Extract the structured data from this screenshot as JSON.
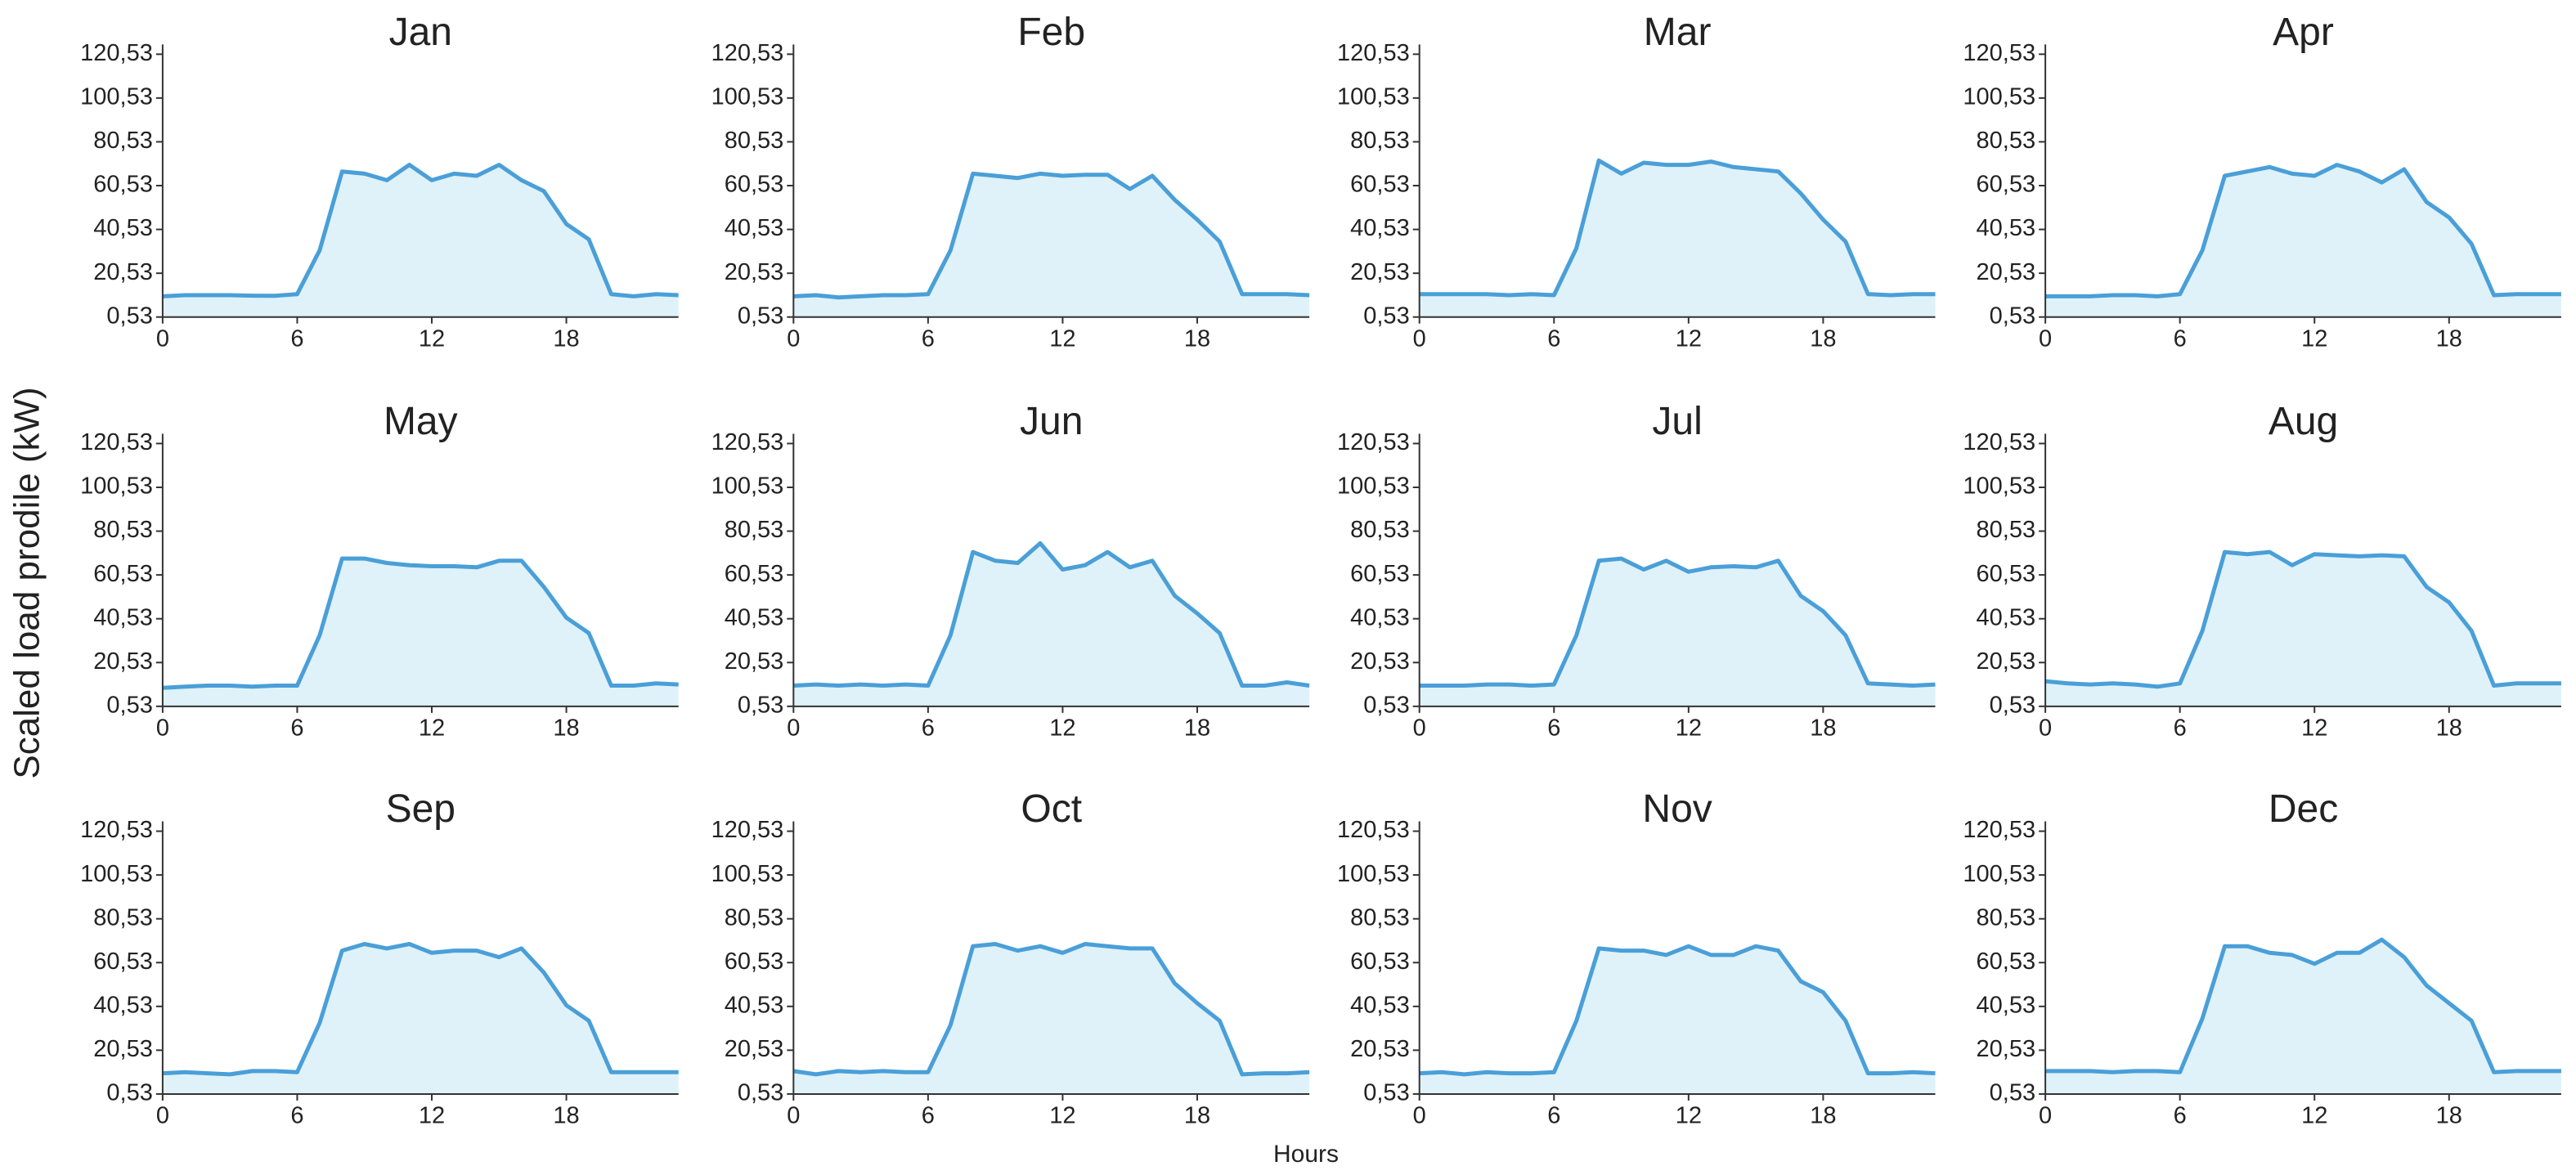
{
  "chart_data": {
    "type": "area",
    "ylabel": "Scaled load prodile (kW)",
    "xlabel": "Hours",
    "x": [
      0,
      1,
      2,
      3,
      4,
      5,
      6,
      7,
      8,
      9,
      10,
      11,
      12,
      13,
      14,
      15,
      16,
      17,
      18,
      19,
      20,
      21,
      22,
      23
    ],
    "xlim": [
      0,
      23
    ],
    "xticks": [
      0,
      6,
      12,
      18
    ],
    "ylim": [
      0.53,
      125
    ],
    "yticks": [
      {
        "value": 0.53,
        "label": "0,53"
      },
      {
        "value": 20.53,
        "label": "20,53"
      },
      {
        "value": 40.53,
        "label": "40,53"
      },
      {
        "value": 60.53,
        "label": "60,53"
      },
      {
        "value": 80.53,
        "label": "80,53"
      },
      {
        "value": 100.53,
        "label": "100,53"
      },
      {
        "value": 120.53,
        "label": "120,53"
      }
    ],
    "color": "#4a9fd8",
    "fill": "#dff2f9",
    "series": [
      {
        "name": "Jan",
        "values": [
          10,
          10.5,
          10.5,
          10.5,
          10.3,
          10.2,
          11,
          31,
          67,
          66,
          63,
          70,
          63,
          66,
          65,
          70,
          63,
          58,
          43,
          36,
          11,
          10,
          11,
          10.5
        ]
      },
      {
        "name": "Feb",
        "values": [
          10,
          10.5,
          9.5,
          10,
          10.5,
          10.5,
          11,
          31,
          66,
          65,
          64,
          66,
          65,
          65.5,
          65.5,
          59,
          65,
          54,
          45,
          35,
          11,
          11,
          11,
          10.5
        ]
      },
      {
        "name": "Mar",
        "values": [
          11,
          11,
          11,
          11,
          10.5,
          11,
          10.5,
          32,
          72,
          66,
          71,
          70,
          70,
          71.5,
          69,
          68,
          67,
          57,
          45,
          35,
          11,
          10.5,
          11,
          11
        ]
      },
      {
        "name": "Apr",
        "values": [
          10,
          10,
          10,
          10.5,
          10.5,
          10,
          11,
          31,
          65,
          67,
          69,
          66,
          65,
          70,
          67,
          62,
          68,
          53,
          46,
          34,
          10.5,
          11,
          11,
          11
        ]
      },
      {
        "name": "May",
        "values": [
          9,
          9.5,
          10,
          10,
          9.5,
          10,
          10,
          33,
          68,
          68,
          66,
          65,
          64.5,
          64.5,
          64,
          67,
          67,
          55,
          41,
          34,
          10,
          10,
          11,
          10.5
        ]
      },
      {
        "name": "Jun",
        "values": [
          10,
          10.5,
          10,
          10.5,
          10,
          10.5,
          10,
          33,
          71,
          67,
          66,
          75,
          63,
          65,
          71,
          64,
          67,
          51,
          43,
          34,
          10,
          10,
          11.5,
          10
        ]
      },
      {
        "name": "Jul",
        "values": [
          10,
          10,
          10,
          10.5,
          10.5,
          10,
          10.5,
          33,
          67,
          68,
          63,
          67,
          62,
          64,
          64.5,
          64,
          67,
          51,
          44,
          33,
          11,
          10.5,
          10,
          10.5
        ]
      },
      {
        "name": "Aug",
        "values": [
          12,
          11,
          10.5,
          11,
          10.5,
          9.5,
          11,
          35,
          71,
          70,
          71,
          65,
          70,
          69.5,
          69,
          69.5,
          69,
          55,
          48,
          35,
          10,
          11,
          11,
          11
        ]
      },
      {
        "name": "Sep",
        "values": [
          10,
          10.5,
          10,
          9.5,
          11,
          11,
          10.5,
          33,
          66,
          69,
          67,
          69,
          65,
          66,
          66,
          63,
          67,
          56,
          41,
          34,
          10.5,
          10.5,
          10.5,
          10.5
        ]
      },
      {
        "name": "Oct",
        "values": [
          11,
          9.5,
          11,
          10.5,
          11,
          10.5,
          10.5,
          32,
          68,
          69,
          66,
          68,
          65,
          69,
          68,
          67,
          67,
          51,
          42,
          34,
          9.5,
          10,
          10,
          10.5
        ]
      },
      {
        "name": "Nov",
        "values": [
          10,
          10.5,
          9.5,
          10.5,
          10,
          10,
          10.5,
          34,
          67,
          66,
          66,
          64,
          68,
          64,
          64,
          68,
          66,
          52,
          47,
          34,
          10,
          10,
          10.5,
          10
        ]
      },
      {
        "name": "Dec",
        "values": [
          11,
          11,
          11,
          10.5,
          11,
          11,
          10.5,
          35,
          68,
          68,
          65,
          64,
          60,
          65,
          65,
          71,
          63,
          50,
          42,
          34,
          10.5,
          11,
          11,
          11
        ]
      }
    ]
  }
}
